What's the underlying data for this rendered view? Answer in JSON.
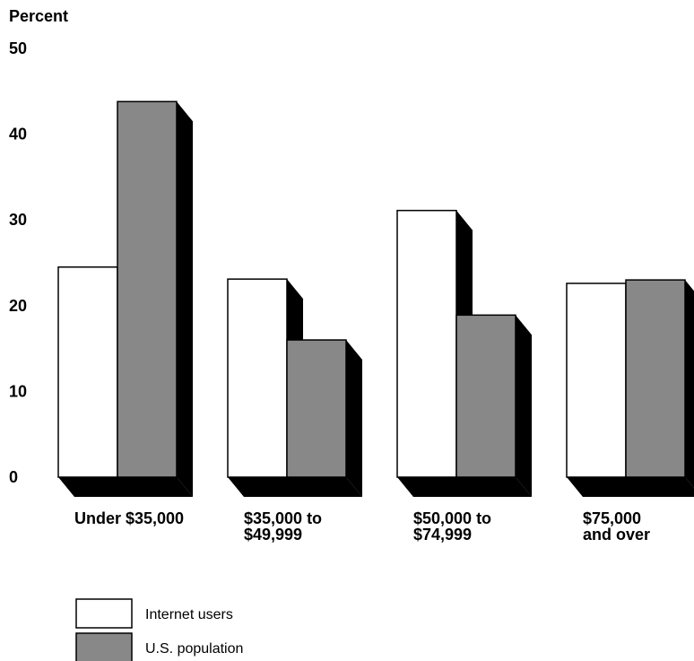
{
  "chart_data": {
    "type": "bar",
    "ylabel": "Percent",
    "ylim": [
      0,
      50
    ],
    "yticks": [
      0,
      10,
      20,
      30,
      40,
      50
    ],
    "grid": false,
    "legend_position": "bottom-left",
    "categories": [
      [
        "Under $35,000"
      ],
      [
        "$35,000 to",
        "$49,999"
      ],
      [
        "$50,000 to",
        "$74,999"
      ],
      [
        "$75,000",
        "and over"
      ]
    ],
    "series": [
      {
        "name": "Internet users",
        "color": "#ffffff",
        "values": [
          24.5,
          23.1,
          31.1,
          22.6
        ]
      },
      {
        "name": "U.S. population",
        "color": "#888888",
        "values": [
          43.8,
          16.0,
          18.9,
          23.0
        ]
      }
    ],
    "shadow_color": "#000000"
  }
}
